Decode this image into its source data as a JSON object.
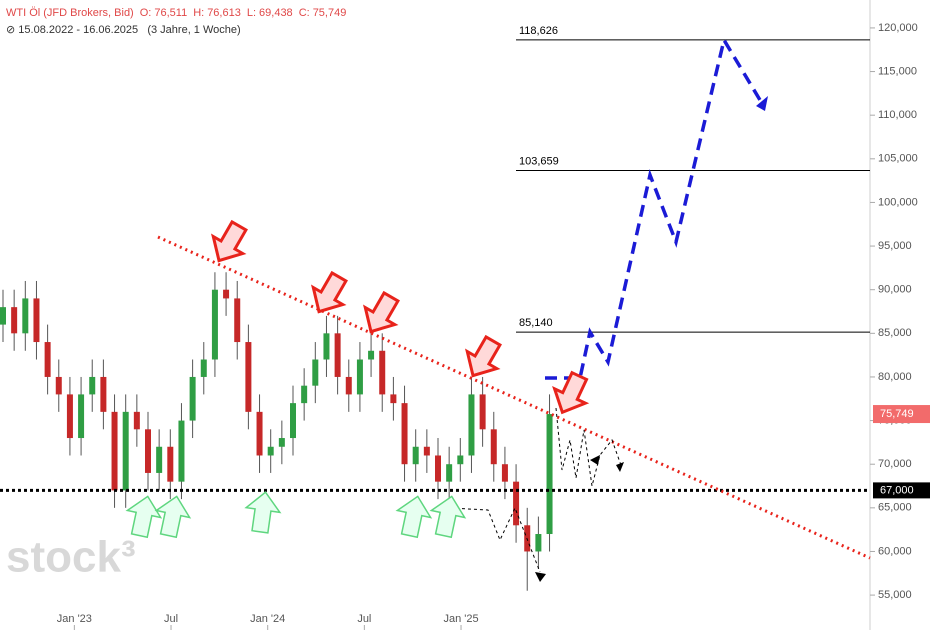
{
  "header": {
    "instrument": "WTI Öl (JFD Brokers, Bid)",
    "ohlc": [
      {
        "label": "O:",
        "value": "76,511"
      },
      {
        "label": "H:",
        "value": "76,613"
      },
      {
        "label": "L:",
        "value": "69,438"
      },
      {
        "label": "C:",
        "value": "75,749"
      }
    ],
    "range": "15.08.2022 - 16.06.2025",
    "period": "(3 Jahre, 1 Woche)",
    "watermark": "stock³"
  },
  "chart_data": {
    "type": "candlestick",
    "x": [
      0,
      3,
      6,
      9,
      12,
      15,
      18,
      21,
      24,
      27,
      30,
      33,
      36,
      39,
      42,
      45,
      48,
      51,
      54,
      57,
      60,
      63,
      66,
      69,
      72,
      75,
      78,
      81,
      84,
      87,
      90,
      93,
      96,
      99,
      102,
      105,
      108,
      111,
      114,
      117,
      120,
      123,
      126,
      129,
      132,
      135,
      138,
      141,
      144,
      147
    ],
    "open": [
      86000,
      88000,
      85000,
      89000,
      84000,
      80000,
      78000,
      73000,
      78000,
      80000,
      76000,
      67000,
      76000,
      74000,
      69000,
      72000,
      68000,
      75000,
      80000,
      82000,
      90000,
      89000,
      84000,
      76000,
      71000,
      72000,
      73000,
      77000,
      79000,
      82000,
      85000,
      80000,
      78000,
      82000,
      83000,
      78000,
      77000,
      70000,
      72000,
      71000,
      68000,
      70000,
      71000,
      78000,
      74000,
      70000,
      68000,
      63000,
      60000,
      62000
    ],
    "high": [
      90000,
      90000,
      91000,
      91000,
      86000,
      82000,
      80000,
      80000,
      82000,
      82000,
      78000,
      78000,
      78000,
      76000,
      74000,
      74000,
      77000,
      82000,
      84000,
      92000,
      92000,
      91000,
      86000,
      78000,
      74000,
      75000,
      79000,
      81000,
      84000,
      87000,
      87000,
      82000,
      84000,
      85000,
      85000,
      80000,
      79000,
      74000,
      74000,
      73000,
      72000,
      73000,
      80000,
      80000,
      76000,
      72000,
      70000,
      65000,
      64000,
      78000
    ],
    "low": [
      84000,
      83000,
      83000,
      82000,
      78000,
      76000,
      71000,
      71000,
      76000,
      74000,
      65000,
      65000,
      72000,
      67000,
      67000,
      66000,
      66000,
      73000,
      78000,
      80000,
      87000,
      82000,
      74000,
      69000,
      69000,
      70000,
      71000,
      75000,
      77000,
      80000,
      78000,
      76000,
      76000,
      80000,
      76000,
      75000,
      68000,
      68000,
      69000,
      66000,
      66000,
      68000,
      69000,
      72000,
      68000,
      66000,
      61000,
      55500,
      58000,
      60000
    ],
    "close": [
      88000,
      85000,
      89000,
      84000,
      80000,
      78000,
      73000,
      78000,
      80000,
      76000,
      67000,
      76000,
      74000,
      69000,
      72000,
      68000,
      75000,
      80000,
      82000,
      90000,
      89000,
      84000,
      76000,
      71000,
      72000,
      73000,
      77000,
      79000,
      82000,
      85000,
      80000,
      78000,
      82000,
      83000,
      78000,
      77000,
      70000,
      72000,
      71000,
      68000,
      70000,
      71000,
      78000,
      74000,
      70000,
      68000,
      63000,
      60000,
      62000,
      75749
    ],
    "up_color": "#2f9e44",
    "down_color": "#c62828",
    "xlim": [
      0,
      234
    ],
    "xticks": [
      {
        "value": 20,
        "label": "Jan '23"
      },
      {
        "value": 46,
        "label": "Jul"
      },
      {
        "value": 72,
        "label": "Jan '24"
      },
      {
        "value": 98,
        "label": "Jul"
      },
      {
        "value": 124,
        "label": "Jan '25"
      }
    ],
    "ylim": [
      51000,
      123200
    ],
    "yticks": [
      {
        "value": 55000,
        "label": "55,000"
      },
      {
        "value": 60000,
        "label": "60,000"
      },
      {
        "value": 65000,
        "label": "65,000"
      },
      {
        "value": 70000,
        "label": "70,000"
      },
      {
        "value": 75000,
        "label": "75,000"
      },
      {
        "value": 80000,
        "label": "80,000"
      },
      {
        "value": 85000,
        "label": "85,000"
      },
      {
        "value": 90000,
        "label": "90,000"
      },
      {
        "value": 95000,
        "label": "95,000"
      },
      {
        "value": 100000,
        "label": "100,000"
      },
      {
        "value": 105000,
        "label": "105,000"
      },
      {
        "value": 110000,
        "label": "110,000"
      },
      {
        "value": 115000,
        "label": "115,000"
      },
      {
        "value": 120000,
        "label": "120,000"
      }
    ],
    "levels": [
      {
        "value": 118626,
        "label": "118,626"
      },
      {
        "value": 103659,
        "label": "103,659"
      },
      {
        "value": 85140,
        "label": "85,140"
      }
    ],
    "support": {
      "value": 67000,
      "label": "67,000",
      "color": "#000000"
    },
    "last_price": {
      "value": 75749,
      "label": "75,749",
      "color": "#f26b6b"
    }
  }
}
